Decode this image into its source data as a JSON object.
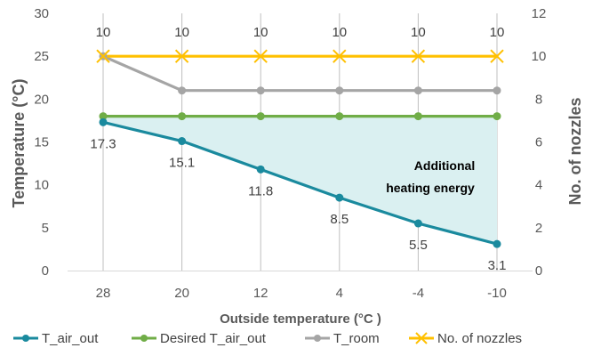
{
  "chart_data": {
    "type": "line",
    "title": "",
    "xlabel": "Outside temperature (°C )",
    "ylabel": "Temperature (°C)",
    "y2label": "No. of nozzles",
    "categories": [
      "28",
      "20",
      "12",
      "4",
      "-4",
      "-10"
    ],
    "ylim": [
      0,
      30
    ],
    "yticks": [
      0,
      5,
      10,
      15,
      20,
      25,
      30
    ],
    "y2lim": [
      0,
      12
    ],
    "y2ticks": [
      0,
      2,
      4,
      6,
      8,
      10,
      12
    ],
    "grid": "vertical",
    "legend": "bottom",
    "series": [
      {
        "name": "T_air_out",
        "axis": "left",
        "color": "#1a8a9e",
        "marker": "circle",
        "values": [
          17.3,
          15.1,
          11.8,
          8.5,
          5.5,
          3.1
        ],
        "labels": [
          "17.3",
          "15.1",
          "11.8",
          "8.5",
          "5.5",
          "3.1"
        ]
      },
      {
        "name": "Desired T_air_out",
        "axis": "left",
        "color": "#70ad47",
        "marker": "circle",
        "values": [
          18,
          18,
          18,
          18,
          18,
          18
        ]
      },
      {
        "name": "T_room",
        "axis": "left",
        "color": "#a5a5a5",
        "marker": "circle",
        "values": [
          25,
          21,
          21,
          21,
          21,
          21
        ]
      },
      {
        "name": "No. of nozzles",
        "axis": "right",
        "color": "#ffc000",
        "marker": "x",
        "values": [
          10,
          10,
          10,
          10,
          10,
          10
        ],
        "labels": [
          "10",
          "10",
          "10",
          "10",
          "10",
          "10"
        ]
      }
    ],
    "shaded_region": {
      "between": [
        "T_air_out",
        "Desired T_air_out"
      ],
      "color": "#daf0f1"
    },
    "annotation": [
      "Additional",
      "heating energy"
    ]
  }
}
